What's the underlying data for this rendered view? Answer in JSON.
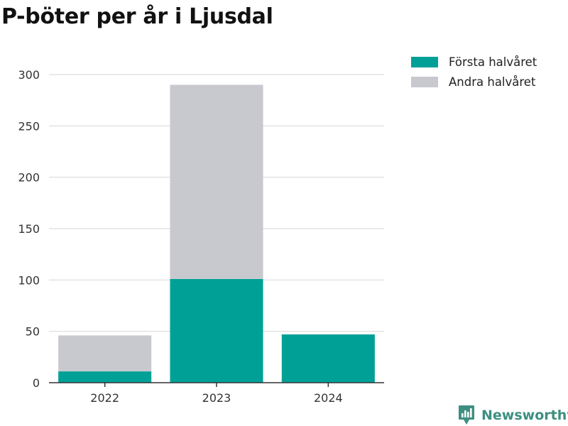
{
  "title": "P-böter per år i Ljusdal",
  "brand": {
    "name": "Newsworthy",
    "color": "#3d8f80"
  },
  "legend": {
    "items": [
      {
        "label": "Första halvåret",
        "color": "#00a097"
      },
      {
        "label": "Andra halvåret",
        "color": "#c8c8cf"
      }
    ]
  },
  "chart_data": {
    "type": "bar",
    "stacked": true,
    "title": "P-böter per år i Ljusdal",
    "xlabel": "",
    "ylabel": "",
    "categories": [
      "2022",
      "2023",
      "2024"
    ],
    "series": [
      {
        "name": "Första halvåret",
        "color": "#00a097",
        "values": [
          11,
          101,
          47
        ]
      },
      {
        "name": "Andra halvåret",
        "color": "#c8c8cf",
        "values": [
          35,
          189,
          0
        ]
      }
    ],
    "ylim": [
      0,
      300
    ],
    "yticks": [
      0,
      50,
      100,
      150,
      200,
      250,
      300
    ],
    "grid": true,
    "legend_position": "top-right"
  }
}
